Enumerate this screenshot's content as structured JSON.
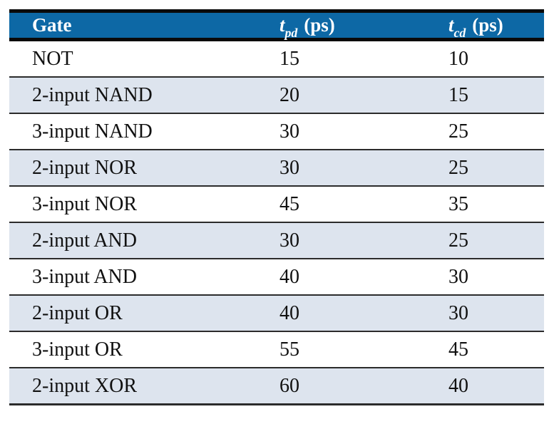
{
  "chart_data": {
    "type": "table",
    "columns": [
      "Gate",
      "tpd (ps)",
      "tcd (ps)"
    ],
    "rows": [
      [
        "NOT",
        15,
        10
      ],
      [
        "2-input NAND",
        20,
        15
      ],
      [
        "3-input NAND",
        30,
        25
      ],
      [
        "2-input NOR",
        30,
        25
      ],
      [
        "3-input NOR",
        45,
        35
      ],
      [
        "2-input AND",
        30,
        25
      ],
      [
        "3-input AND",
        40,
        30
      ],
      [
        "2-input OR",
        40,
        30
      ],
      [
        "3-input OR",
        55,
        45
      ],
      [
        "2-input XOR",
        60,
        40
      ]
    ],
    "layout": {
      "header_style": "solid blue band, white bold text",
      "row_striping": "even rows shaded light blue",
      "grid": "horizontal rules only"
    }
  },
  "header": {
    "gate": "Gate",
    "tpd": {
      "sym": "t",
      "sub": "pd",
      "unit": "(ps)"
    },
    "tcd": {
      "sym": "t",
      "sub": "cd",
      "unit": "(ps)"
    }
  },
  "colors": {
    "header_bg": "#0d68a5",
    "header_text": "#ffffff",
    "row_alt_bg": "#dde4ee",
    "rule": "#2b2b2b"
  }
}
